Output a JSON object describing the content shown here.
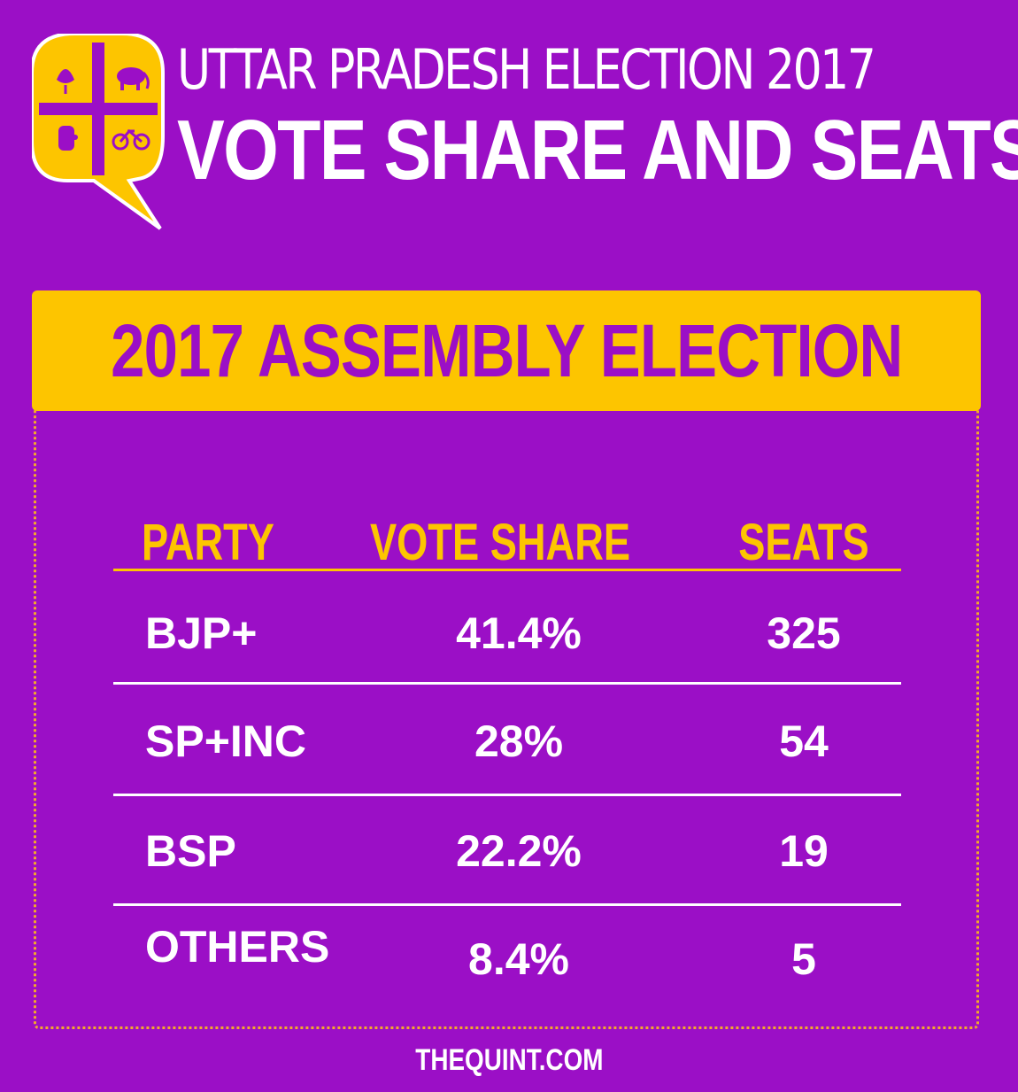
{
  "header": {
    "line1": "UTTAR PRADESH ELECTION 2017",
    "line2": "VOTE SHARE AND SEATS"
  },
  "logo": {
    "icons": [
      "lotus-icon",
      "elephant-icon",
      "hand-icon",
      "bicycle-icon"
    ]
  },
  "banner": {
    "title": "2017 ASSEMBLY ELECTION"
  },
  "table": {
    "columns": [
      "PARTY",
      "VOTE SHARE",
      "SEATS"
    ],
    "rows": [
      {
        "party": "BJP+",
        "vote_share": "41.4%",
        "seats": "325"
      },
      {
        "party": "SP+INC",
        "vote_share": "28%",
        "seats": "54"
      },
      {
        "party": "BSP",
        "vote_share": "22.2%",
        "seats": "19"
      },
      {
        "party": "OTHERS",
        "vote_share": "8.4%",
        "seats": "5"
      }
    ]
  },
  "footer": {
    "site": "THEQUINT.COM"
  },
  "colors": {
    "background": "#9b0fc6",
    "accent": "#fdc500",
    "text": "#ffffff"
  }
}
